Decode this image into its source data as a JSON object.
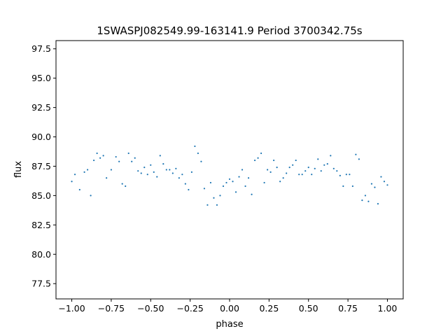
{
  "chart_data": {
    "type": "scatter",
    "title": "1SWASPJ082549.99-163141.9 Period 3700342.75s",
    "xlabel": "phase",
    "ylabel": "flux",
    "xlim": [
      -1.1,
      1.1
    ],
    "ylim": [
      76.2,
      98.2
    ],
    "grid": false,
    "legend": "none",
    "marker_color": "#1f77b4",
    "x_ticks": [
      -1.0,
      -0.75,
      -0.5,
      -0.25,
      0.0,
      0.25,
      0.5,
      0.75,
      1.0
    ],
    "x_tick_labels": [
      "−1.00",
      "−0.75",
      "−0.50",
      "−0.25",
      "0.00",
      "0.25",
      "0.50",
      "0.75",
      "1.00"
    ],
    "y_ticks": [
      77.5,
      80.0,
      82.5,
      85.0,
      87.5,
      90.0,
      92.5,
      95.0,
      97.5
    ],
    "y_tick_labels": [
      "77.5",
      "80.0",
      "82.5",
      "85.0",
      "87.5",
      "90.0",
      "92.5",
      "95.0",
      "97.5"
    ],
    "series": [
      {
        "x": [
          -1.0,
          -0.98,
          -0.95,
          -0.92,
          -0.9,
          -0.88,
          -0.86,
          -0.84,
          -0.82,
          -0.8,
          -0.78,
          -0.75,
          -0.72,
          -0.7,
          -0.68,
          -0.66,
          -0.64,
          -0.62,
          -0.6,
          -0.58,
          -0.56,
          -0.54,
          -0.52,
          -0.5,
          -0.48,
          -0.46,
          -0.44,
          -0.42,
          -0.4,
          -0.38,
          -0.36,
          -0.34,
          -0.32,
          -0.3,
          -0.28,
          -0.26,
          -0.24,
          -0.22,
          -0.2,
          -0.18,
          -0.16,
          -0.14,
          -0.12,
          -0.1,
          -0.08,
          -0.06,
          -0.04,
          -0.02,
          0.0,
          0.02,
          0.04,
          0.06,
          0.08,
          0.1,
          0.12,
          0.14,
          0.16,
          0.18,
          0.2,
          0.22,
          0.24,
          0.26,
          0.28,
          0.3,
          0.32,
          0.34,
          0.36,
          0.38,
          0.4,
          0.42,
          0.44,
          0.46,
          0.48,
          0.5,
          0.52,
          0.54,
          0.56,
          0.58,
          0.6,
          0.62,
          0.64,
          0.66,
          0.68,
          0.7,
          0.72,
          0.74,
          0.76,
          0.78,
          0.8,
          0.82,
          0.84,
          0.86,
          0.88,
          0.9,
          0.92,
          0.94,
          0.96,
          0.98,
          1.0
        ],
        "y": [
          86.2,
          86.8,
          85.5,
          87.0,
          87.2,
          85.0,
          88.0,
          88.6,
          88.2,
          88.4,
          86.5,
          87.2,
          88.3,
          87.9,
          86.0,
          85.8,
          88.6,
          87.9,
          88.2,
          87.1,
          86.9,
          87.4,
          86.8,
          87.6,
          87.0,
          86.6,
          88.4,
          87.7,
          87.2,
          87.2,
          86.9,
          87.3,
          86.5,
          86.8,
          86.0,
          85.5,
          87.0,
          89.2,
          88.6,
          87.9,
          85.6,
          84.2,
          86.1,
          84.8,
          84.2,
          85.0,
          85.8,
          86.1,
          86.4,
          86.2,
          85.3,
          86.6,
          87.2,
          85.8,
          86.5,
          85.1,
          88.0,
          88.2,
          88.6,
          86.1,
          87.2,
          87.0,
          88.0,
          87.4,
          86.2,
          86.5,
          86.9,
          87.4,
          87.6,
          88.0,
          86.8,
          86.8,
          87.1,
          87.4,
          86.8,
          87.3,
          88.1,
          87.1,
          87.6,
          87.7,
          88.4,
          87.3,
          87.1,
          86.7,
          85.8,
          86.8,
          86.8,
          85.8,
          88.5,
          88.1,
          84.6,
          85.0,
          84.5,
          86.0,
          85.7,
          84.3,
          86.6,
          86.2,
          85.9
        ]
      }
    ]
  }
}
